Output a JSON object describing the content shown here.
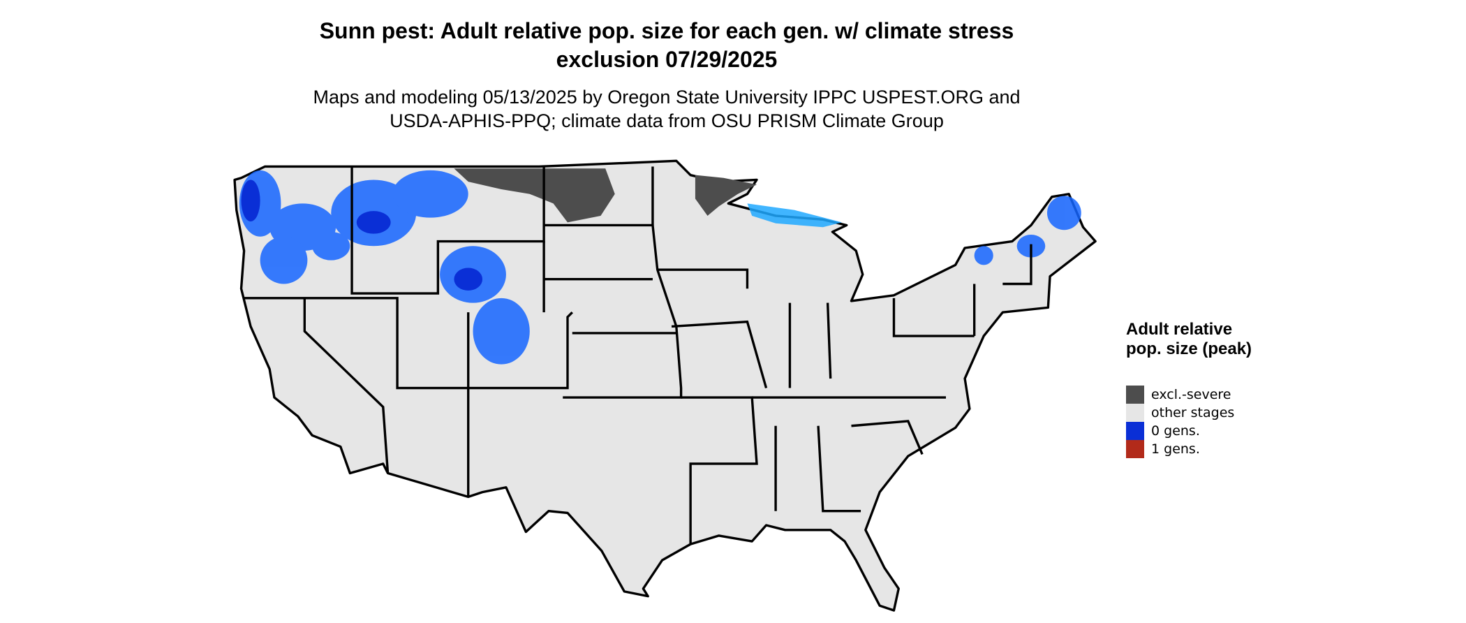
{
  "header": {
    "title": "Sunn pest: Adult relative pop. size for each gen. w/ climate stress exclusion 07/29/2025",
    "subtitle": "Maps and modeling 05/13/2025 by Oregon State University IPPC USPEST.ORG and USDA-APHIS-PPQ; climate data from OSU PRISM Climate Group"
  },
  "legend": {
    "title": "Adult relative pop. size (peak)",
    "items": [
      {
        "label": "excl.-severe",
        "color": "#4d4d4d"
      },
      {
        "label": "other stages",
        "color": "#e6e6e6"
      },
      {
        "label": "0 gens.",
        "color": "#0a2fd6"
      },
      {
        "label": "1 gens.",
        "color": "#b22a1a"
      }
    ]
  }
}
